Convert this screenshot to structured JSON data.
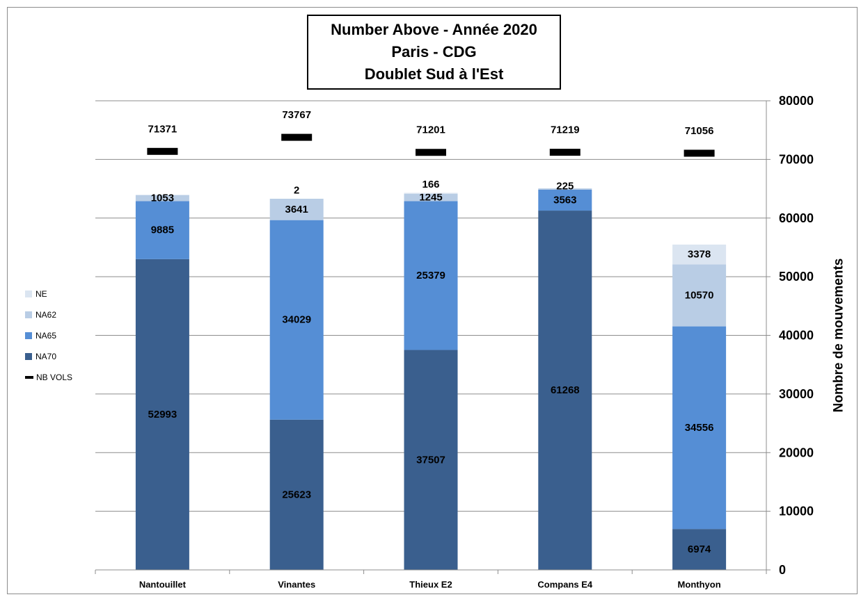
{
  "title_lines": [
    "Number Above - Année 2020",
    "Paris - CDG",
    "Doublet Sud à l'Est"
  ],
  "legend": [
    {
      "key": "NE",
      "label": "NE",
      "color": "#dbe5f1"
    },
    {
      "key": "NA62",
      "label": "NA62",
      "color": "#b9cde5"
    },
    {
      "key": "NA65",
      "label": "NA65",
      "color": "#558ed5"
    },
    {
      "key": "NA70",
      "label": "NA70",
      "color": "#3a5f8e"
    },
    {
      "key": "NB_VOLS",
      "label": "NB VOLS",
      "color": "#000000"
    }
  ],
  "chart_data": {
    "type": "bar",
    "stacked": true,
    "categories": [
      "Nantouillet",
      "Vinantes",
      "Thieux E2",
      "Compans E4",
      "Monthyon"
    ],
    "series": [
      {
        "name": "NA70",
        "values": [
          52993,
          25623,
          37507,
          61268,
          6974
        ],
        "color": "#3a5f8e"
      },
      {
        "name": "NA65",
        "values": [
          9885,
          34029,
          25379,
          3563,
          34556
        ],
        "color": "#558ed5"
      },
      {
        "name": "NA62",
        "values": [
          1053,
          3641,
          1245,
          225,
          10570
        ],
        "color": "#b9cde5"
      },
      {
        "name": "NE",
        "values": [
          0,
          2,
          166,
          0,
          3378
        ],
        "color": "#dbe5f1"
      }
    ],
    "segment_labels": {
      "NA70": [
        "52993",
        "25623",
        "37507",
        "61268",
        "6974"
      ],
      "NA65": [
        "9885",
        "34029",
        "25379",
        "3563",
        "34556"
      ],
      "NA62": [
        "1053",
        "3641",
        "1245",
        "225",
        "10570"
      ],
      "NE": [
        "",
        "2",
        "166",
        "",
        "3378"
      ]
    },
    "nb_vols": {
      "name": "NB VOLS",
      "values": [
        71371,
        73767,
        71201,
        71219,
        71056
      ]
    },
    "ylabel": "Nombre de mouvements",
    "ylim": [
      0,
      80000
    ],
    "yticks": [
      0,
      10000,
      20000,
      30000,
      40000,
      50000,
      60000,
      70000,
      80000
    ],
    "ytick_labels": [
      "0",
      "10000",
      "20000",
      "30000",
      "40000",
      "50000",
      "60000",
      "70000",
      "80000"
    ],
    "y_axis_side": "right",
    "grid": true,
    "legend_position": "left"
  }
}
